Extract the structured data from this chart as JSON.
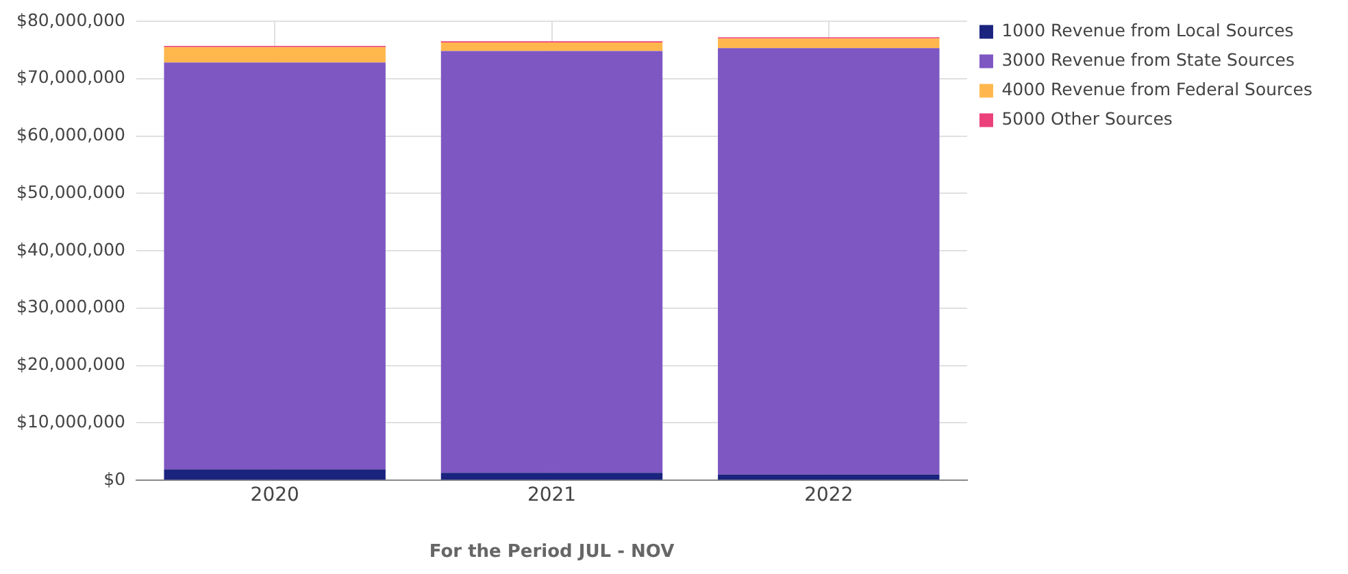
{
  "chart_data": {
    "type": "bar",
    "stacked": true,
    "xlabel": "For the Period JUL - NOV",
    "categories": [
      "2020",
      "2021",
      "2022"
    ],
    "series": [
      {
        "name": "1000 Revenue from Local Sources",
        "color": "#1a237e",
        "values": [
          1900000,
          1300000,
          1000000
        ]
      },
      {
        "name": "3000 Revenue from State Sources",
        "color": "#7e57c2",
        "values": [
          70900000,
          73500000,
          74300000
        ]
      },
      {
        "name": "4000 Revenue from Federal Sources",
        "color": "#ffb74d",
        "values": [
          2700000,
          1500000,
          1700000
        ]
      },
      {
        "name": "5000 Other Sources",
        "color": "#ec407a",
        "values": [
          200000,
          200000,
          200000
        ]
      }
    ],
    "ylim": [
      0,
      80000000
    ],
    "yticks": [
      {
        "value": 0,
        "label": "$0"
      },
      {
        "value": 10000000,
        "label": "$10,000,000"
      },
      {
        "value": 20000000,
        "label": "$20,000,000"
      },
      {
        "value": 30000000,
        "label": "$30,000,000"
      },
      {
        "value": 40000000,
        "label": "$40,000,000"
      },
      {
        "value": 50000000,
        "label": "$50,000,000"
      },
      {
        "value": 60000000,
        "label": "$60,000,000"
      },
      {
        "value": 70000000,
        "label": "$70,000,000"
      },
      {
        "value": 80000000,
        "label": "$80,000,000"
      }
    ],
    "grid": true,
    "legend": "top right"
  }
}
